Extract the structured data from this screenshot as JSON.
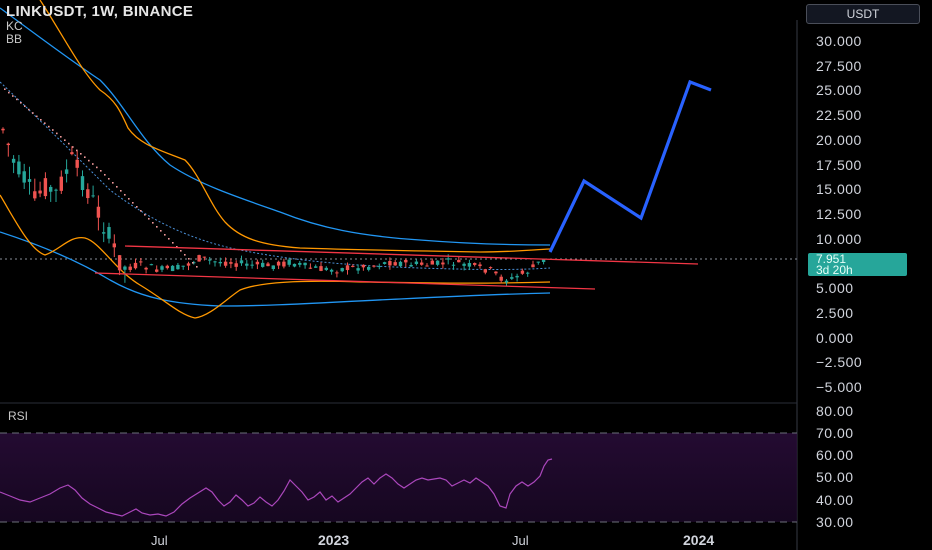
{
  "legend": {
    "title": "LINKUSDT, 1W, BINANCE",
    "indicators": [
      "KC",
      "BB"
    ]
  },
  "currency_button": "USDT",
  "price_axis": [
    "30.000",
    "27.500",
    "25.000",
    "22.500",
    "20.000",
    "17.500",
    "15.000",
    "12.500",
    "10.000",
    "5.000",
    "2.500",
    "0.000",
    "−2.500",
    "−5.000"
  ],
  "last_price": {
    "value": "7.951",
    "countdown": "3d 20h"
  },
  "rsi": {
    "label": "RSI",
    "axis": [
      "80.00",
      "70.00",
      "60.00",
      "50.00",
      "40.00",
      "30.00"
    ]
  },
  "time_axis": {
    "labels": [
      {
        "text": "Jul",
        "bold": false
      },
      {
        "text": "2023",
        "bold": true
      },
      {
        "text": "Jul",
        "bold": false
      },
      {
        "text": "2024",
        "bold": true
      }
    ]
  },
  "colors": {
    "background": "#000000",
    "up": "#26a69a",
    "down": "#ef5350",
    "bb": "#2196f3",
    "kc": "#ff9800",
    "trendline": "#f23645",
    "projection": "#2962ff",
    "rsi_line": "#9c27b0"
  }
}
